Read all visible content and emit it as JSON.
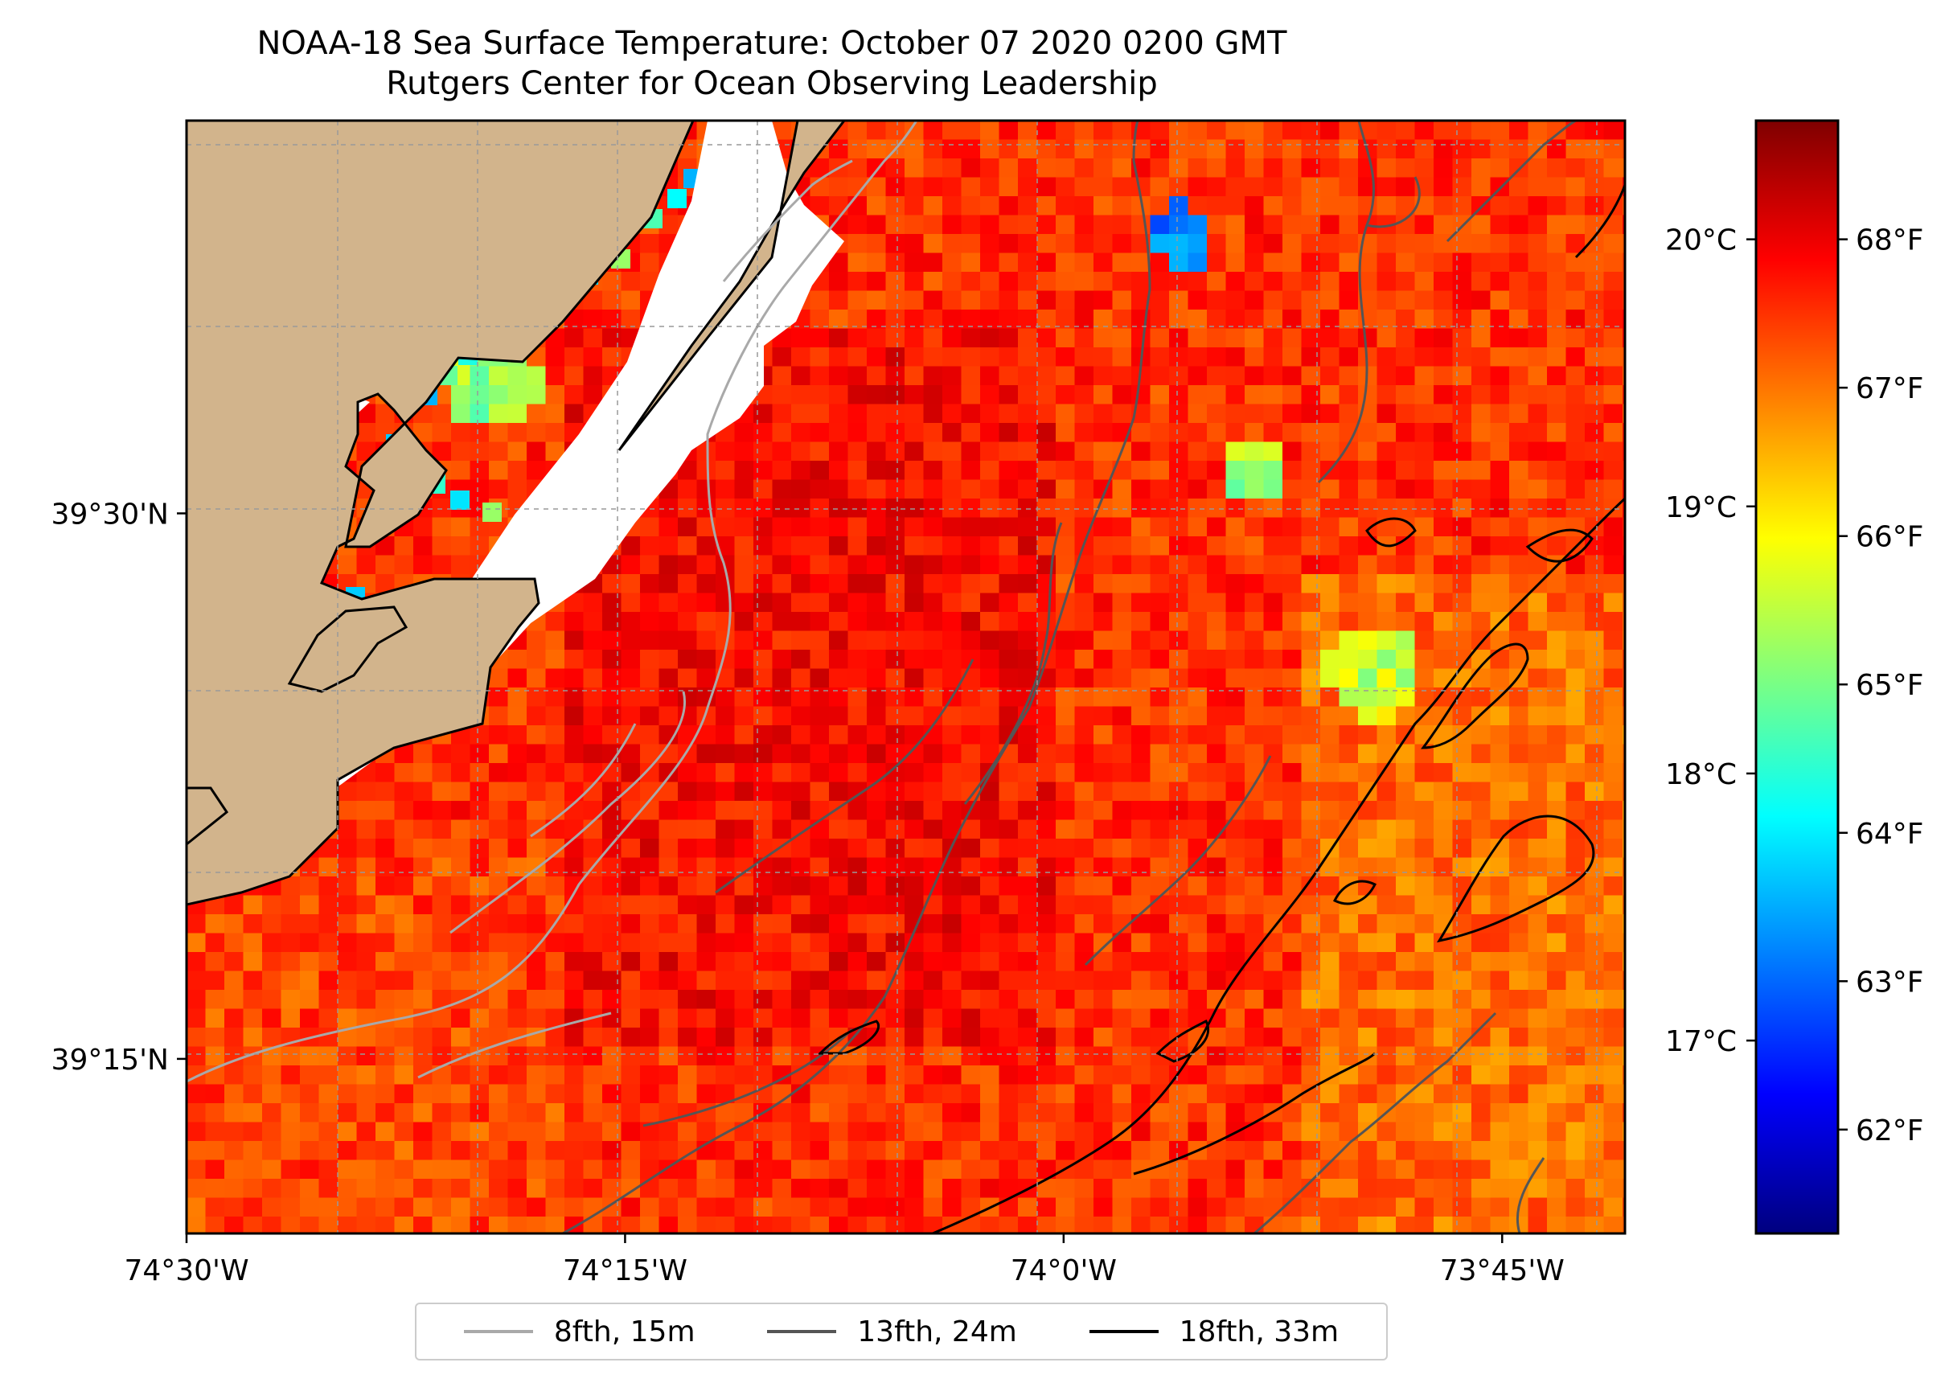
{
  "title": "NOAA-18 Sea Surface Temperature: October 07 2020 0200 GMT",
  "subtitle": "Rutgers Center for Ocean Observing Leadership",
  "map": {
    "x_ticks": [
      {
        "value": -74.5,
        "label": "74°30'W"
      },
      {
        "value": -74.25,
        "label": "74°15'W"
      },
      {
        "value": -74.0,
        "label": "74°0'W"
      },
      {
        "value": -73.75,
        "label": "73°45'W"
      }
    ],
    "y_ticks": [
      {
        "value": 39.5,
        "label": "39°30'N"
      },
      {
        "value": 39.25,
        "label": "39°15'N"
      }
    ],
    "extent": {
      "lon": [
        -74.5,
        -73.68
      ],
      "lat": [
        39.17,
        39.68
      ]
    },
    "land_color": "#d2b48c"
  },
  "colorbar": {
    "f_ticks": [
      "62°F",
      "63°F",
      "64°F",
      "65°F",
      "66°F",
      "67°F",
      "68°F"
    ],
    "c_ticks": [
      "17°C",
      "18°C",
      "19°C",
      "20°C"
    ],
    "f_range": [
      61.3,
      68.8
    ],
    "colormap": "jet"
  },
  "legend": [
    {
      "label": "8fth, 15m",
      "color": "#a9a9a9"
    },
    {
      "label": "13fth, 24m",
      "color": "#555555"
    },
    {
      "label": "18fth, 33m",
      "color": "#000000"
    }
  ]
}
